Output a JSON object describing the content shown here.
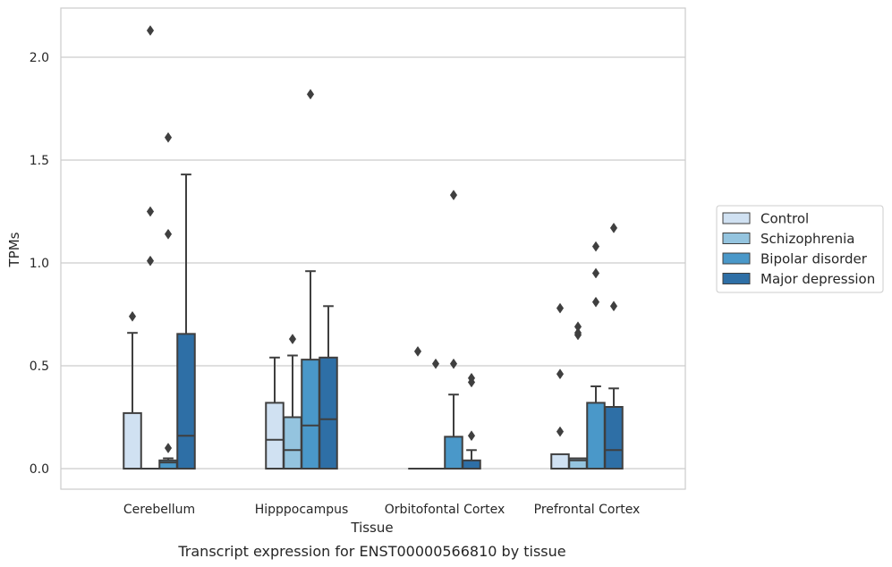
{
  "caption": "Transcript expression for ENST00000566810 by tissue",
  "chart_data": {
    "type": "boxplot",
    "xlabel": "Tissue",
    "ylabel": "TPMs",
    "ylim": [
      -0.1,
      2.25
    ],
    "yticks": [
      "0.0",
      "0.5",
      "1.0",
      "1.5",
      "2.0"
    ],
    "grid": "horizontal",
    "legend_position": "right",
    "categories": [
      "Cerebellum",
      "Hipppocampus",
      "Orbitofontal Cortex",
      "Prefrontal Cortex"
    ],
    "series": [
      {
        "name": "Control",
        "color": "#d0e1f2",
        "boxes": [
          {
            "q1": 0,
            "median": 0,
            "q3": 0.27,
            "whisker_low": 0,
            "whisker_high": 0.66,
            "outliers": [
              0.74
            ]
          },
          {
            "q1": 0,
            "median": 0.14,
            "q3": 0.32,
            "whisker_low": 0,
            "whisker_high": 0.54,
            "outliers": []
          },
          {
            "q1": 0,
            "median": 0,
            "q3": 0,
            "whisker_low": 0,
            "whisker_high": 0,
            "outliers": [
              0.57
            ]
          },
          {
            "q1": 0,
            "median": 0,
            "q3": 0.07,
            "whisker_low": 0,
            "whisker_high": 0.07,
            "outliers": [
              0.18,
              0.46,
              0.78
            ]
          }
        ]
      },
      {
        "name": "Schizophrenia",
        "color": "#94c4df",
        "boxes": [
          {
            "q1": 0,
            "median": 0,
            "q3": 0,
            "whisker_low": 0,
            "whisker_high": 0,
            "outliers": [
              1.01,
              1.25,
              2.13
            ]
          },
          {
            "q1": 0,
            "median": 0.09,
            "q3": 0.25,
            "whisker_low": 0,
            "whisker_high": 0.55,
            "outliers": [
              0.63
            ]
          },
          {
            "q1": 0,
            "median": 0,
            "q3": 0,
            "whisker_low": 0,
            "whisker_high": 0,
            "outliers": [
              0.51
            ]
          },
          {
            "q1": 0,
            "median": 0.04,
            "q3": 0.05,
            "whisker_low": 0,
            "whisker_high": 0.05,
            "outliers": [
              0.65,
              0.66,
              0.69
            ]
          }
        ]
      },
      {
        "name": "Bipolar disorder",
        "color": "#4a98c9",
        "boxes": [
          {
            "q1": 0,
            "median": 0.03,
            "q3": 0.04,
            "whisker_low": 0,
            "whisker_high": 0.05,
            "outliers": [
              0.1,
              1.14,
              1.61
            ]
          },
          {
            "q1": 0,
            "median": 0.21,
            "q3": 0.53,
            "whisker_low": 0,
            "whisker_high": 0.96,
            "outliers": [
              1.82
            ]
          },
          {
            "q1": 0,
            "median": 0,
            "q3": 0.155,
            "whisker_low": 0,
            "whisker_high": 0.36,
            "outliers": [
              0.51,
              1.33
            ]
          },
          {
            "q1": 0,
            "median": 0,
            "q3": 0.32,
            "whisker_low": 0,
            "whisker_high": 0.4,
            "outliers": [
              0.81,
              0.95,
              1.08
            ]
          }
        ]
      },
      {
        "name": "Major depression",
        "color": "#2e6fa6",
        "boxes": [
          {
            "q1": 0,
            "median": 0.16,
            "q3": 0.655,
            "whisker_low": 0,
            "whisker_high": 1.43,
            "outliers": []
          },
          {
            "q1": 0,
            "median": 0.24,
            "q3": 0.54,
            "whisker_low": 0,
            "whisker_high": 0.79,
            "outliers": []
          },
          {
            "q1": 0,
            "median": 0,
            "q3": 0.04,
            "whisker_low": 0,
            "whisker_high": 0.09,
            "outliers": [
              0.16,
              0.42,
              0.44
            ]
          },
          {
            "q1": 0,
            "median": 0.09,
            "q3": 0.3,
            "whisker_low": 0,
            "whisker_high": 0.39,
            "outliers": [
              0.79,
              1.17
            ]
          }
        ]
      }
    ]
  }
}
